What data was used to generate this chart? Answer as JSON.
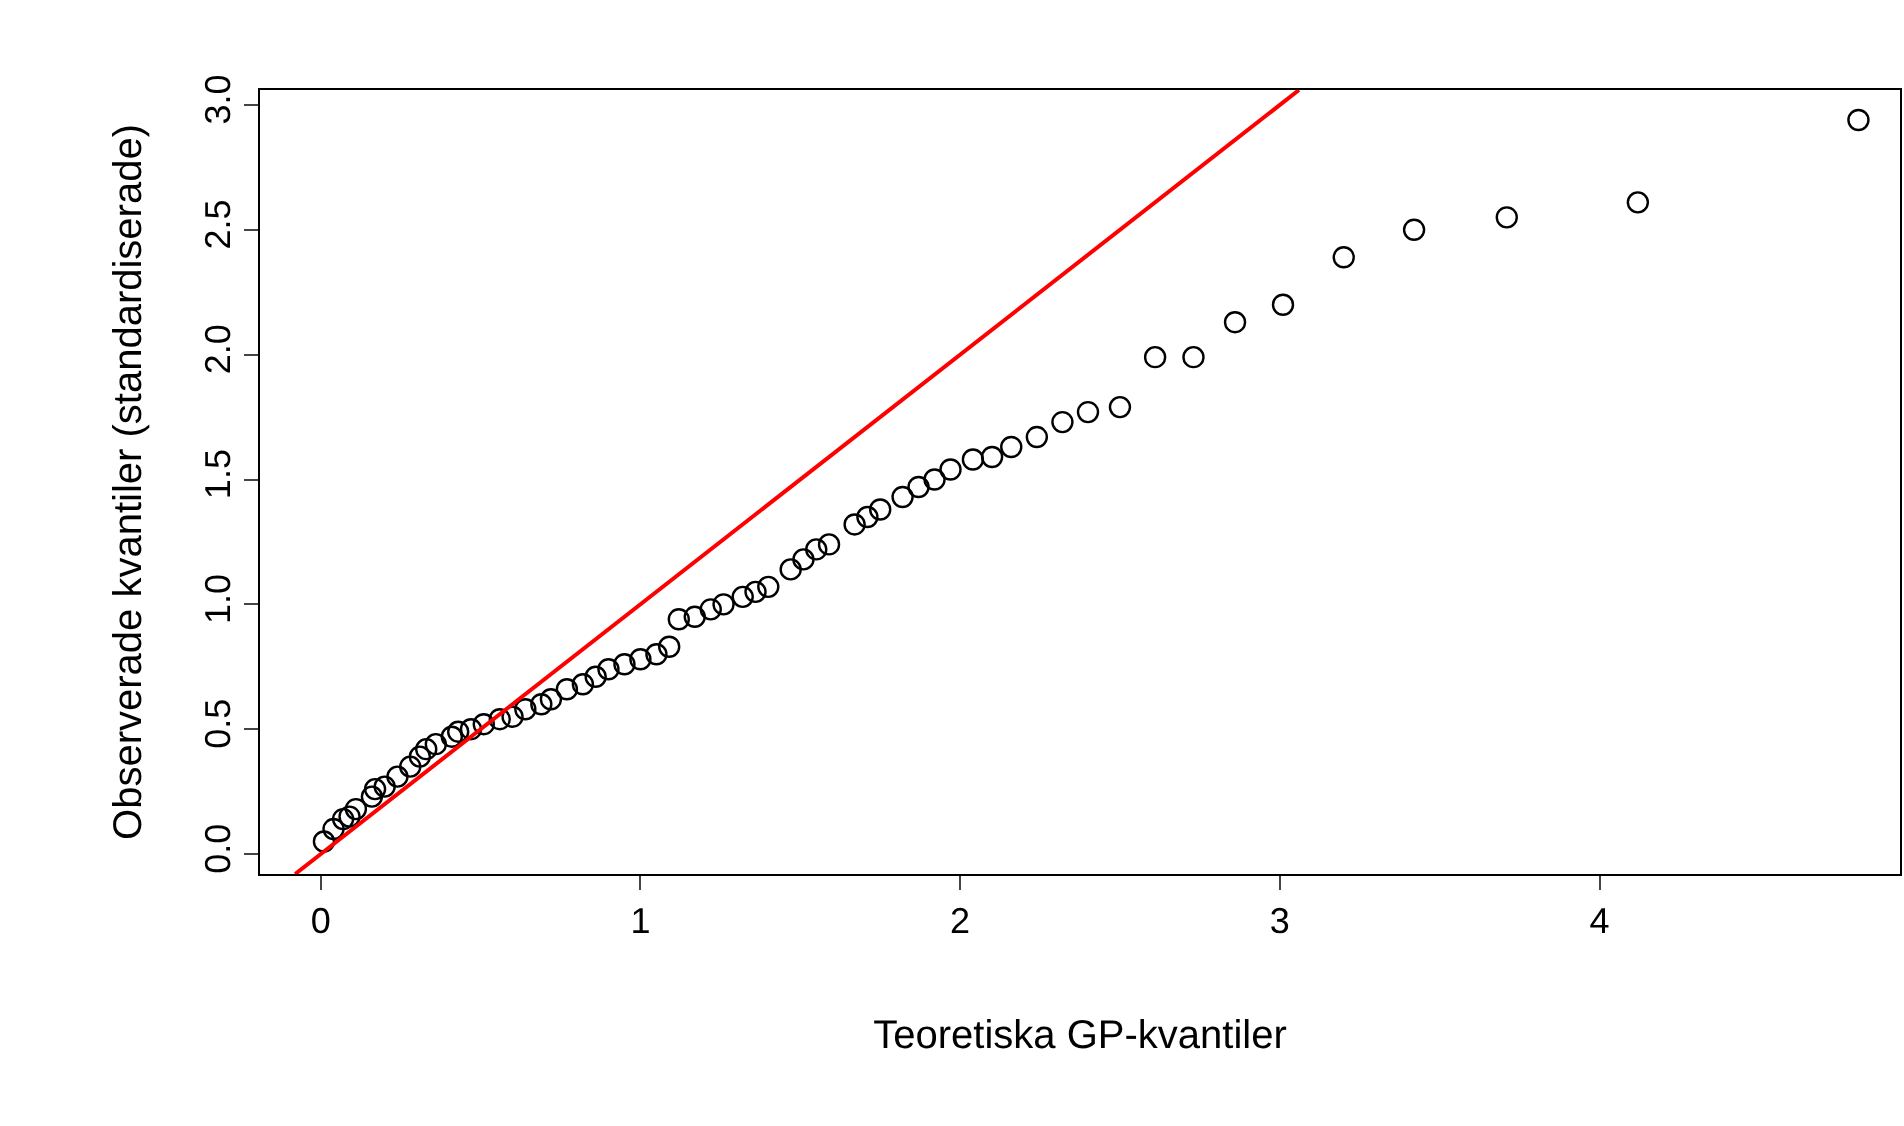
{
  "chart_data": {
    "type": "scatter",
    "xlabel": "Teoretiska GP-kvantiler",
    "ylabel": "Observerade kvantiler (standardiserade)",
    "xlim": [
      -0.19,
      4.94
    ],
    "ylim": [
      -0.08,
      3.06
    ],
    "xticks": [
      0,
      1,
      2,
      3,
      4
    ],
    "yticks": [
      {
        "value": 0,
        "label": "0.0"
      },
      {
        "value": 0.5,
        "label": "0.5"
      },
      {
        "value": 1,
        "label": "1.0"
      },
      {
        "value": 1.5,
        "label": "1.5"
      },
      {
        "value": 2,
        "label": "2.0"
      },
      {
        "value": 2.5,
        "label": "2.5"
      },
      {
        "value": 3,
        "label": "3.0"
      }
    ],
    "series": [
      {
        "marker": "circle",
        "color": "#000000",
        "x": [
          0.01,
          0.04,
          0.07,
          0.09,
          0.11,
          0.16,
          0.17,
          0.2,
          0.24,
          0.28,
          0.31,
          0.33,
          0.36,
          0.41,
          0.43,
          0.47,
          0.51,
          0.56,
          0.6,
          0.64,
          0.69,
          0.72,
          0.77,
          0.82,
          0.86,
          0.9,
          0.95,
          1.0,
          1.05,
          1.09,
          1.12,
          1.17,
          1.22,
          1.26,
          1.32,
          1.36,
          1.4,
          1.47,
          1.51,
          1.55,
          1.59,
          1.67,
          1.71,
          1.75,
          1.82,
          1.87,
          1.92,
          1.97,
          2.04,
          2.1,
          2.16,
          2.24,
          2.32,
          2.4,
          2.5,
          2.61,
          2.73,
          2.86,
          3.01,
          3.2,
          3.42,
          3.71,
          4.12,
          4.81
        ],
        "values": [
          0.05,
          0.1,
          0.14,
          0.15,
          0.18,
          0.23,
          0.26,
          0.27,
          0.31,
          0.35,
          0.39,
          0.42,
          0.44,
          0.47,
          0.49,
          0.5,
          0.52,
          0.54,
          0.55,
          0.58,
          0.6,
          0.62,
          0.66,
          0.68,
          0.71,
          0.74,
          0.76,
          0.78,
          0.8,
          0.83,
          0.94,
          0.95,
          0.98,
          1.0,
          1.03,
          1.05,
          1.07,
          1.14,
          1.18,
          1.22,
          1.24,
          1.32,
          1.35,
          1.38,
          1.43,
          1.47,
          1.5,
          1.54,
          1.58,
          1.59,
          1.63,
          1.67,
          1.73,
          1.77,
          1.79,
          1.99,
          1.99,
          2.13,
          2.2,
          2.39,
          2.5,
          2.55,
          2.61,
          2.94
        ]
      },
      {
        "type": "line",
        "line_style": "solid",
        "color": "#ff0000",
        "x": [
          -0.08,
          3.06
        ],
        "values": [
          -0.08,
          3.06
        ]
      }
    ]
  }
}
